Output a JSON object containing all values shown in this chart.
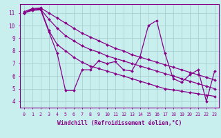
{
  "title": "",
  "xlabel": "Windchill (Refroidissement éolien,°C)",
  "ylabel": "",
  "background_color": "#c8eeee",
  "line_color": "#880088",
  "grid_color": "#a0cccc",
  "xlim": [
    -0.5,
    23.5
  ],
  "ylim": [
    3.5,
    11.7
  ],
  "xticks": [
    0,
    1,
    2,
    3,
    4,
    5,
    6,
    7,
    8,
    9,
    10,
    11,
    12,
    13,
    14,
    15,
    16,
    17,
    18,
    19,
    20,
    21,
    22,
    23
  ],
  "yticks": [
    4,
    5,
    6,
    7,
    8,
    9,
    10,
    11
  ],
  "series": [
    [
      11.0,
      11.2,
      11.25,
      9.5,
      7.8,
      4.85,
      4.85,
      6.5,
      6.5,
      7.2,
      7.0,
      7.15,
      6.5,
      6.4,
      7.55,
      10.0,
      10.4,
      7.8,
      5.8,
      5.5,
      6.1,
      6.5,
      4.0,
      6.4
    ],
    [
      11.0,
      11.3,
      11.35,
      9.6,
      8.5,
      8.0,
      7.5,
      7.1,
      6.8,
      6.6,
      6.4,
      6.2,
      6.0,
      5.8,
      5.6,
      5.4,
      5.2,
      5.0,
      4.9,
      4.8,
      4.7,
      4.6,
      4.5,
      4.4
    ],
    [
      11.0,
      11.25,
      11.3,
      10.5,
      9.8,
      9.2,
      8.8,
      8.4,
      8.1,
      7.9,
      7.6,
      7.4,
      7.2,
      7.0,
      6.8,
      6.6,
      6.4,
      6.2,
      6.0,
      5.8,
      5.6,
      5.4,
      5.2,
      5.0
    ],
    [
      11.1,
      11.35,
      11.4,
      11.0,
      10.6,
      10.2,
      9.8,
      9.4,
      9.1,
      8.8,
      8.5,
      8.2,
      8.0,
      7.7,
      7.5,
      7.3,
      7.1,
      6.9,
      6.7,
      6.5,
      6.3,
      6.1,
      5.9,
      5.7
    ]
  ]
}
